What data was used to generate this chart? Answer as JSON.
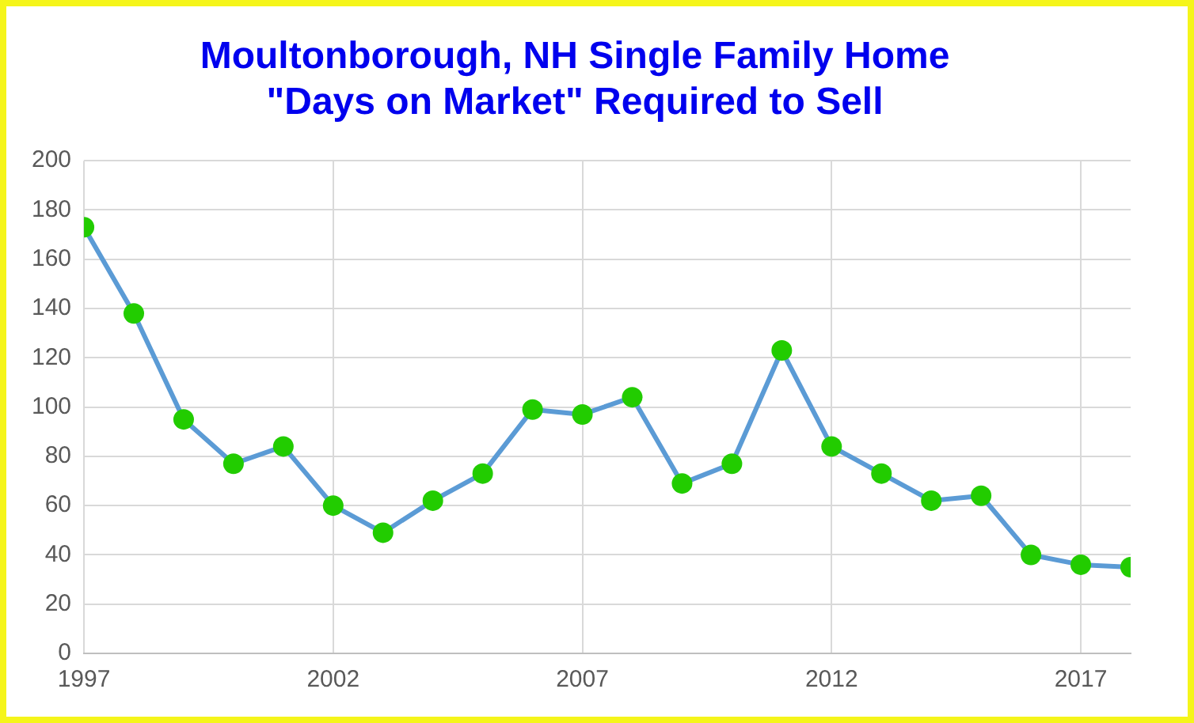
{
  "chart_data": {
    "type": "line",
    "title": [
      "Moultonborough, NH Single Family Home",
      "\"Days on Market\" Required to Sell"
    ],
    "x": [
      1997,
      1998,
      1999,
      2000,
      2001,
      2002,
      2003,
      2004,
      2005,
      2006,
      2007,
      2008,
      2009,
      2010,
      2011,
      2012,
      2013,
      2014,
      2015,
      2016,
      2017,
      2018
    ],
    "series": [
      {
        "color": "#5b9bd5",
        "colors": [
          "#22cc00",
          "#22cc00",
          "#22cc00",
          "#22cc00",
          "#22cc00",
          "#22cc00",
          "#22cc00",
          "#22cc00",
          "#22cc00",
          "#22cc00",
          "#22cc00",
          "#22cc00",
          "#22cc00",
          "#22cc00",
          "#22cc00",
          "#22cc00",
          "#22cc00",
          "#22cc00",
          "#22cc00",
          "#22cc00",
          "#22cc00",
          "#22cc00"
        ],
        "values": [
          173,
          138,
          95,
          77,
          84,
          60,
          49,
          62,
          73,
          99,
          97,
          104,
          69,
          77,
          123,
          84,
          73,
          62,
          64,
          40,
          36,
          35
        ]
      }
    ],
    "xlim": [
      1997,
      2018
    ],
    "xticks": [
      1997,
      2002,
      2007,
      2012,
      2017
    ],
    "ylim": [
      0,
      200
    ],
    "yticks": [
      0,
      20,
      40,
      60,
      80,
      100,
      120,
      140,
      160,
      180,
      200
    ],
    "grid": true,
    "legend": false,
    "marker": "circle",
    "line_style": "solid"
  }
}
